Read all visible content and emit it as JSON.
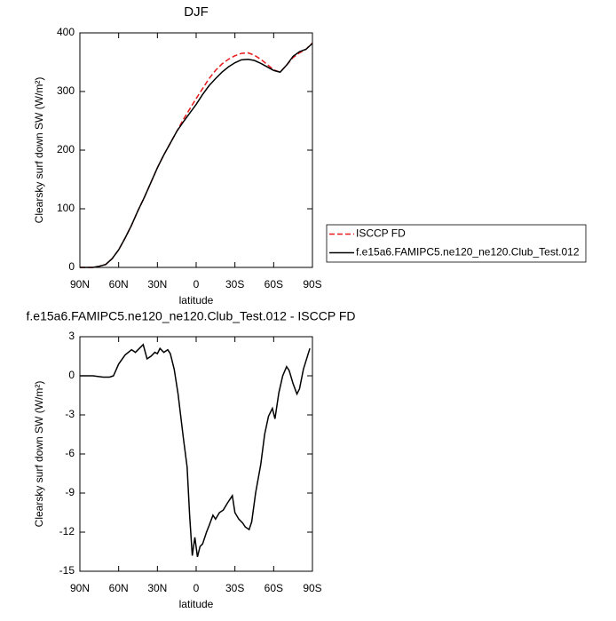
{
  "chart_data": [
    {
      "type": "line",
      "title": "DJF",
      "xlabel": "latitude",
      "ylabel": "Clearsky surf down SW (W/m²)",
      "x": [
        90,
        85,
        80,
        75,
        70,
        65,
        60,
        55,
        50,
        45,
        40,
        35,
        30,
        25,
        20,
        15,
        10,
        5,
        0,
        -5,
        -10,
        -15,
        -20,
        -25,
        -30,
        -35,
        -40,
        -45,
        -50,
        -55,
        -60,
        -65,
        -70,
        -75,
        -80,
        -85,
        -90
      ],
      "series": [
        {
          "name": "ISCCP FD",
          "color": "#e8191b",
          "dashed": true,
          "values": [
            0,
            0,
            0,
            2,
            5,
            15,
            30,
            50,
            72,
            97,
            120,
            145,
            170,
            192,
            212,
            232,
            252,
            270,
            288,
            305,
            322,
            336,
            347,
            355,
            361,
            365,
            366,
            362,
            355,
            346,
            337,
            333,
            345,
            358,
            366,
            372,
            383
          ]
        },
        {
          "name": "f.e15a6.FAMIPC5.ne120_ne120.Club_Test.012",
          "color": "#000000",
          "dashed": false,
          "values": [
            0,
            0,
            0,
            2,
            5,
            15,
            30,
            50,
            72,
            97,
            120,
            145,
            170,
            192,
            212,
            232,
            248,
            263,
            278,
            295,
            310,
            322,
            333,
            342,
            349,
            354,
            355,
            353,
            348,
            342,
            336,
            333,
            345,
            360,
            368,
            372,
            382
          ]
        }
      ],
      "xlim": [
        90,
        -90
      ],
      "xticks": [
        {
          "value": 90,
          "label": "90N"
        },
        {
          "value": 60,
          "label": "60N"
        },
        {
          "value": 30,
          "label": "30N"
        },
        0,
        {
          "value": -30,
          "label": "30S"
        },
        {
          "value": -60,
          "label": "60S"
        },
        {
          "value": -90,
          "label": "90S"
        }
      ],
      "ylim": [
        0,
        400
      ],
      "yticks": [
        0,
        100,
        200,
        300,
        400
      ]
    },
    {
      "type": "line",
      "title": "f.e15a6.FAMIPC5.ne120_ne120.Club_Test.012 - ISCCP FD",
      "xlabel": "latitude",
      "ylabel": "Clearsky surf down SW (W/m²)",
      "x": [
        90,
        80,
        72,
        67,
        64,
        60,
        55,
        50,
        47,
        44,
        41,
        38,
        35,
        32,
        30,
        28,
        25,
        22,
        20,
        17,
        14,
        10,
        7,
        5,
        3,
        1,
        -1,
        -3,
        -5,
        -8,
        -10,
        -13,
        -15,
        -18,
        -21,
        -24,
        -26,
        -28,
        -30,
        -33,
        -36,
        -38,
        -41,
        -43,
        -46,
        -50,
        -53,
        -56,
        -59,
        -61,
        -64,
        -67,
        -70,
        -72,
        -75,
        -78,
        -80,
        -83,
        -88
      ],
      "series": [
        {
          "color": "#000000",
          "dashed": false,
          "values": [
            0,
            0,
            -0.1,
            -0.1,
            0,
            0.9,
            1.6,
            2.0,
            1.8,
            2.1,
            2.4,
            1.3,
            1.5,
            1.8,
            1.7,
            2.1,
            1.8,
            2.0,
            1.7,
            0.5,
            -1.4,
            -4.7,
            -7,
            -10.8,
            -13.8,
            -12.4,
            -13.9,
            -13.1,
            -12.9,
            -12,
            -11.5,
            -10.7,
            -11,
            -10.5,
            -10.3,
            -9.8,
            -9.5,
            -9.2,
            -10.5,
            -11,
            -11.3,
            -11.6,
            -11.8,
            -11.2,
            -9,
            -6.8,
            -4.5,
            -3.1,
            -2.5,
            -3.3,
            -1.3,
            0,
            0.7,
            0.4,
            -0.6,
            -1.4,
            -1.0,
            0.5,
            2.1
          ]
        }
      ],
      "xlim": [
        90,
        -90
      ],
      "xticks": [
        {
          "value": 90,
          "label": "90N"
        },
        {
          "value": 60,
          "label": "60N"
        },
        {
          "value": 30,
          "label": "30N"
        },
        0,
        {
          "value": -30,
          "label": "30S"
        },
        {
          "value": -60,
          "label": "60S"
        },
        {
          "value": -90,
          "label": "90S"
        }
      ],
      "ylim": [
        -15,
        3
      ],
      "yticks": [
        -15,
        -12,
        -9,
        -6,
        -3,
        0,
        3
      ]
    }
  ]
}
